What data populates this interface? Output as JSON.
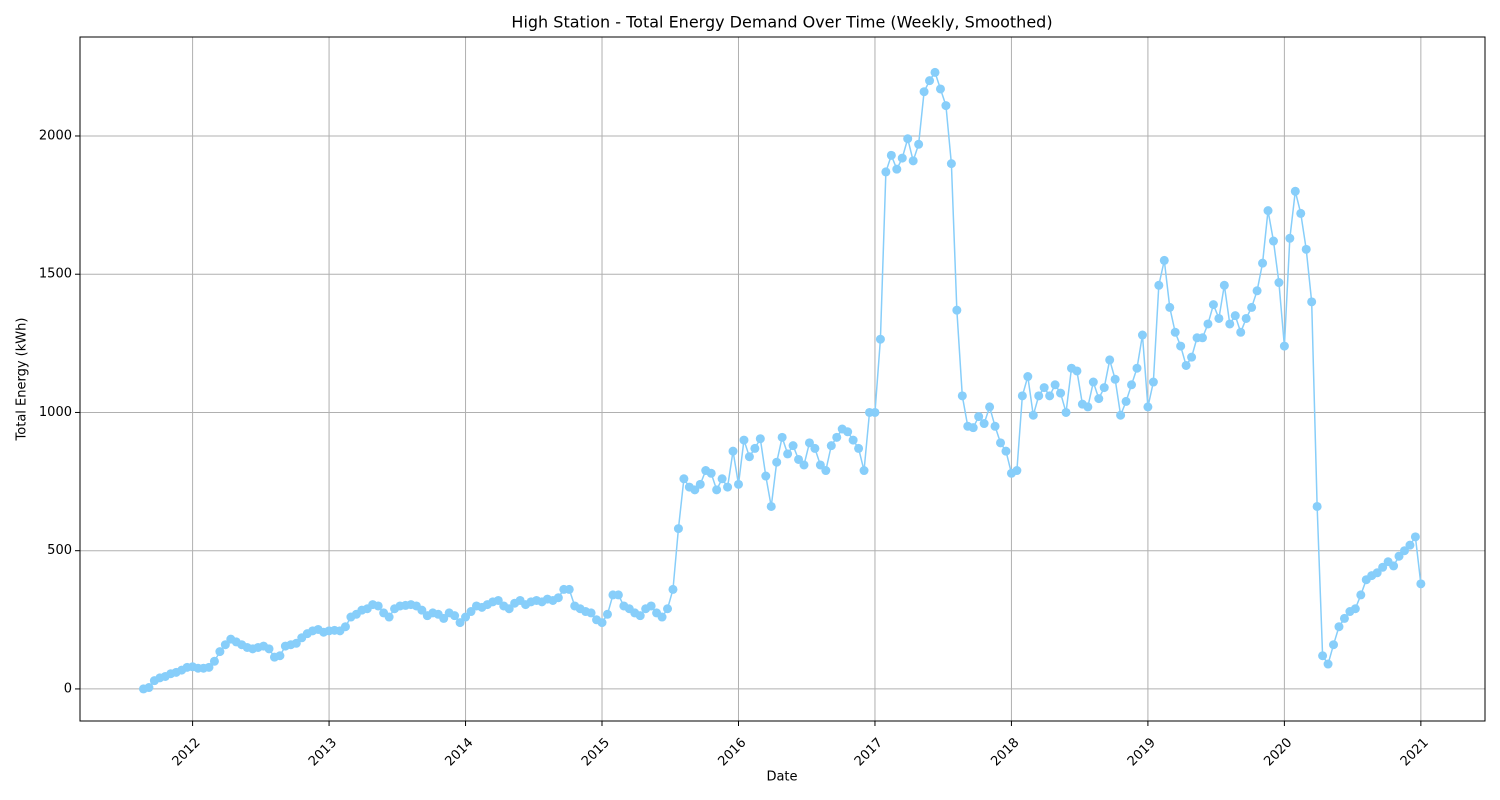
{
  "chart_data": {
    "type": "line",
    "title": "High Station - Total Energy Demand Over Time (Weekly, Smoothed)",
    "xlabel": "Date",
    "ylabel": "Total Energy (kWh)",
    "xlim": [
      2011.175,
      2021.47
    ],
    "xticks": [
      2012,
      2013,
      2014,
      2015,
      2016,
      2017,
      2018,
      2019,
      2020,
      2021
    ],
    "ylim": [
      -116,
      2358
    ],
    "yticks": [
      0,
      500,
      1000,
      1500,
      2000
    ],
    "grid": true,
    "series": [
      {
        "name": "Total Energy",
        "color": "#87cefa",
        "x": [
          2011.64,
          2011.68,
          2011.72,
          2011.76,
          2011.8,
          2011.84,
          2011.88,
          2011.92,
          2011.96,
          2012.0,
          2012.04,
          2012.08,
          2012.12,
          2012.16,
          2012.2,
          2012.24,
          2012.28,
          2012.32,
          2012.36,
          2012.4,
          2012.44,
          2012.48,
          2012.52,
          2012.56,
          2012.6,
          2012.64,
          2012.68,
          2012.72,
          2012.76,
          2012.8,
          2012.84,
          2012.88,
          2012.92,
          2012.96,
          2013.0,
          2013.04,
          2013.08,
          2013.12,
          2013.16,
          2013.2,
          2013.24,
          2013.28,
          2013.32,
          2013.36,
          2013.4,
          2013.44,
          2013.48,
          2013.52,
          2013.56,
          2013.6,
          2013.64,
          2013.68,
          2013.72,
          2013.76,
          2013.8,
          2013.84,
          2013.88,
          2013.92,
          2013.96,
          2014.0,
          2014.04,
          2014.08,
          2014.12,
          2014.16,
          2014.2,
          2014.24,
          2014.28,
          2014.32,
          2014.36,
          2014.4,
          2014.44,
          2014.48,
          2014.52,
          2014.56,
          2014.6,
          2014.64,
          2014.68,
          2014.72,
          2014.76,
          2014.8,
          2014.84,
          2014.88,
          2014.92,
          2014.96,
          2015.0,
          2015.04,
          2015.08,
          2015.12,
          2015.16,
          2015.2,
          2015.24,
          2015.28,
          2015.32,
          2015.36,
          2015.4,
          2015.44,
          2015.48,
          2015.52,
          2015.56,
          2015.6,
          2015.64,
          2015.68,
          2015.72,
          2015.76,
          2015.8,
          2015.84,
          2015.88,
          2015.92,
          2015.96,
          2016.0,
          2016.04,
          2016.08,
          2016.12,
          2016.16,
          2016.2,
          2016.24,
          2016.28,
          2016.32,
          2016.36,
          2016.4,
          2016.44,
          2016.48,
          2016.52,
          2016.56,
          2016.6,
          2016.64,
          2016.68,
          2016.72,
          2016.76,
          2016.8,
          2016.84,
          2016.88,
          2016.92,
          2016.96,
          2017.0,
          2017.04,
          2017.08,
          2017.12,
          2017.16,
          2017.2,
          2017.24,
          2017.28,
          2017.32,
          2017.36,
          2017.4,
          2017.44,
          2017.48,
          2017.52,
          2017.56,
          2017.6,
          2017.64,
          2017.68,
          2017.72,
          2017.76,
          2017.8,
          2017.84,
          2017.88,
          2017.92,
          2017.96,
          2018.0,
          2018.04,
          2018.08,
          2018.12,
          2018.16,
          2018.2,
          2018.24,
          2018.28,
          2018.32,
          2018.36,
          2018.4,
          2018.44,
          2018.48,
          2018.52,
          2018.56,
          2018.6,
          2018.64,
          2018.68,
          2018.72,
          2018.76,
          2018.8,
          2018.84,
          2018.88,
          2018.92,
          2018.96,
          2019.0,
          2019.04,
          2019.08,
          2019.12,
          2019.16,
          2019.2,
          2019.24,
          2019.28,
          2019.32,
          2019.36,
          2019.4,
          2019.44,
          2019.48,
          2019.52,
          2019.56,
          2019.6,
          2019.64,
          2019.68,
          2019.72,
          2019.76,
          2019.8,
          2019.84,
          2019.88,
          2019.92,
          2019.96,
          2020.0,
          2020.04,
          2020.08,
          2020.12,
          2020.16,
          2020.2,
          2020.24,
          2020.28,
          2020.32,
          2020.36,
          2020.4,
          2020.44,
          2020.48,
          2020.52,
          2020.56,
          2020.6,
          2020.64,
          2020.68,
          2020.72,
          2020.76,
          2020.8,
          2020.84,
          2020.88,
          2020.92,
          2020.96,
          2021.0
        ],
        "values": [
          0,
          5,
          30,
          40,
          45,
          55,
          60,
          68,
          78,
          80,
          75,
          75,
          78,
          100,
          135,
          160,
          180,
          170,
          160,
          150,
          145,
          150,
          155,
          145,
          115,
          120,
          155,
          160,
          165,
          185,
          200,
          210,
          215,
          205,
          210,
          212,
          210,
          225,
          260,
          270,
          285,
          290,
          305,
          300,
          275,
          260,
          290,
          300,
          302,
          305,
          300,
          285,
          265,
          275,
          270,
          255,
          275,
          265,
          240,
          260,
          280,
          300,
          295,
          305,
          315,
          320,
          300,
          290,
          310,
          320,
          305,
          315,
          320,
          315,
          325,
          320,
          330,
          360,
          360,
          300,
          290,
          280,
          275,
          250,
          240,
          270,
          340,
          340,
          300,
          290,
          275,
          265,
          290,
          300,
          275,
          260,
          290,
          360,
          580,
          760,
          730,
          720,
          740,
          790,
          780,
          720,
          760,
          730,
          860,
          740,
          900,
          840,
          870,
          905,
          770,
          660,
          820,
          910,
          850,
          880,
          830,
          810,
          890,
          870,
          810,
          790,
          880,
          910,
          940,
          930,
          900,
          870,
          790,
          1000,
          1000,
          1265,
          1870,
          1930,
          1880,
          1920,
          1990,
          1910,
          1970,
          2160,
          2200,
          2230,
          2170,
          2110,
          1900,
          1370,
          1060,
          950,
          945,
          985,
          960,
          1020,
          950,
          890,
          860,
          780,
          790,
          1060,
          1130,
          990,
          1060,
          1090,
          1060,
          1100,
          1070,
          1000,
          1160,
          1150,
          1030,
          1020,
          1110,
          1050,
          1090,
          1190,
          1120,
          990,
          1040,
          1100,
          1160,
          1280,
          1020,
          1110,
          1460,
          1550,
          1380,
          1290,
          1240,
          1170,
          1200,
          1270,
          1270,
          1320,
          1390,
          1340,
          1460,
          1320,
          1350,
          1290,
          1340,
          1380,
          1440,
          1540,
          1730,
          1620,
          1470,
          1240,
          1630,
          1800,
          1720,
          1590,
          1400,
          660,
          120,
          90,
          160,
          225,
          255,
          280,
          290,
          340,
          395,
          410,
          420,
          440,
          460,
          445,
          480,
          500,
          520,
          550,
          380
        ]
      }
    ]
  }
}
